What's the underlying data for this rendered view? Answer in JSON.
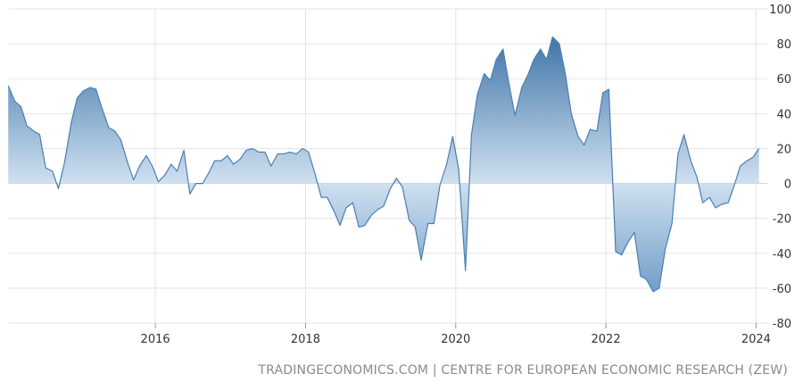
{
  "chart_data": {
    "type": "area",
    "title": "",
    "xlabel": "",
    "ylabel": "",
    "x_range": [
      2014.05,
      2024.15
    ],
    "ylim": [
      -80,
      100
    ],
    "y_ticks": [
      100,
      80,
      60,
      40,
      20,
      0,
      -20,
      -40,
      -60,
      -80
    ],
    "x_tick_labels": [
      {
        "value": 2016,
        "label": "2016"
      },
      {
        "value": 2018,
        "label": "2018"
      },
      {
        "value": 2020,
        "label": "2020"
      },
      {
        "value": 2022,
        "label": "2022"
      },
      {
        "value": 2024,
        "label": "2024"
      }
    ],
    "grid": true,
    "series": [
      {
        "color": "#4a7fb0",
        "points": [
          [
            2014.04,
            56
          ],
          [
            2014.13,
            47
          ],
          [
            2014.21,
            44
          ],
          [
            2014.29,
            33
          ],
          [
            2014.38,
            30
          ],
          [
            2014.46,
            28
          ],
          [
            2014.54,
            9
          ],
          [
            2014.63,
            7
          ],
          [
            2014.71,
            -3
          ],
          [
            2014.79,
            12
          ],
          [
            2014.88,
            35
          ],
          [
            2014.96,
            49
          ],
          [
            2015.04,
            53
          ],
          [
            2015.13,
            55
          ],
          [
            2015.21,
            54
          ],
          [
            2015.29,
            43
          ],
          [
            2015.38,
            32
          ],
          [
            2015.46,
            30
          ],
          [
            2015.54,
            25
          ],
          [
            2015.63,
            12
          ],
          [
            2015.71,
            2
          ],
          [
            2015.79,
            10
          ],
          [
            2015.88,
            16
          ],
          [
            2015.96,
            10
          ],
          [
            2016.04,
            1
          ],
          [
            2016.13,
            5
          ],
          [
            2016.21,
            11
          ],
          [
            2016.29,
            7
          ],
          [
            2016.38,
            19
          ],
          [
            2016.46,
            -6
          ],
          [
            2016.54,
            0
          ],
          [
            2016.63,
            0
          ],
          [
            2016.71,
            6
          ],
          [
            2016.79,
            13
          ],
          [
            2016.88,
            13
          ],
          [
            2016.96,
            16
          ],
          [
            2017.04,
            11
          ],
          [
            2017.13,
            14
          ],
          [
            2017.21,
            19
          ],
          [
            2017.29,
            20
          ],
          [
            2017.38,
            18
          ],
          [
            2017.46,
            18
          ],
          [
            2017.54,
            10
          ],
          [
            2017.63,
            17
          ],
          [
            2017.71,
            17
          ],
          [
            2017.79,
            18
          ],
          [
            2017.88,
            17
          ],
          [
            2017.96,
            20
          ],
          [
            2018.04,
            18
          ],
          [
            2018.13,
            5
          ],
          [
            2018.21,
            -8
          ],
          [
            2018.29,
            -8
          ],
          [
            2018.38,
            -16
          ],
          [
            2018.46,
            -24
          ],
          [
            2018.54,
            -14
          ],
          [
            2018.63,
            -11
          ],
          [
            2018.71,
            -25
          ],
          [
            2018.79,
            -24
          ],
          [
            2018.88,
            -18
          ],
          [
            2018.96,
            -15
          ],
          [
            2019.04,
            -13
          ],
          [
            2019.13,
            -3
          ],
          [
            2019.21,
            3
          ],
          [
            2019.29,
            -2
          ],
          [
            2019.38,
            -21
          ],
          [
            2019.46,
            -25
          ],
          [
            2019.54,
            -44
          ],
          [
            2019.63,
            -23
          ],
          [
            2019.71,
            -23
          ],
          [
            2019.79,
            -1
          ],
          [
            2019.88,
            11
          ],
          [
            2019.96,
            27
          ],
          [
            2020.04,
            8
          ],
          [
            2020.13,
            -50
          ],
          [
            2020.21,
            28
          ],
          [
            2020.29,
            51
          ],
          [
            2020.38,
            63
          ],
          [
            2020.46,
            59
          ],
          [
            2020.54,
            71
          ],
          [
            2020.63,
            77
          ],
          [
            2020.71,
            57
          ],
          [
            2020.79,
            39
          ],
          [
            2020.88,
            55
          ],
          [
            2020.96,
            62
          ],
          [
            2021.04,
            71
          ],
          [
            2021.13,
            77
          ],
          [
            2021.21,
            71
          ],
          [
            2021.29,
            84
          ],
          [
            2021.38,
            80
          ],
          [
            2021.46,
            63
          ],
          [
            2021.54,
            40
          ],
          [
            2021.63,
            27
          ],
          [
            2021.71,
            22
          ],
          [
            2021.79,
            31
          ],
          [
            2021.88,
            30
          ],
          [
            2021.96,
            52
          ],
          [
            2022.04,
            54
          ],
          [
            2022.13,
            -39
          ],
          [
            2022.21,
            -41
          ],
          [
            2022.29,
            -34
          ],
          [
            2022.38,
            -28
          ],
          [
            2022.46,
            -53
          ],
          [
            2022.54,
            -55
          ],
          [
            2022.63,
            -62
          ],
          [
            2022.71,
            -60
          ],
          [
            2022.79,
            -38
          ],
          [
            2022.88,
            -23
          ],
          [
            2022.96,
            17
          ],
          [
            2023.04,
            28
          ],
          [
            2023.13,
            13
          ],
          [
            2023.21,
            4
          ],
          [
            2023.29,
            -11
          ],
          [
            2023.38,
            -8
          ],
          [
            2023.46,
            -14
          ],
          [
            2023.54,
            -12
          ],
          [
            2023.63,
            -11
          ],
          [
            2023.71,
            -1
          ],
          [
            2023.79,
            10
          ],
          [
            2023.88,
            13
          ],
          [
            2023.96,
            15
          ],
          [
            2024.04,
            20
          ]
        ]
      }
    ]
  },
  "source_note": "TRADINGECONOMICS.COM | CENTRE FOR EUROPEAN ECONOMIC RESEARCH (ZEW)"
}
